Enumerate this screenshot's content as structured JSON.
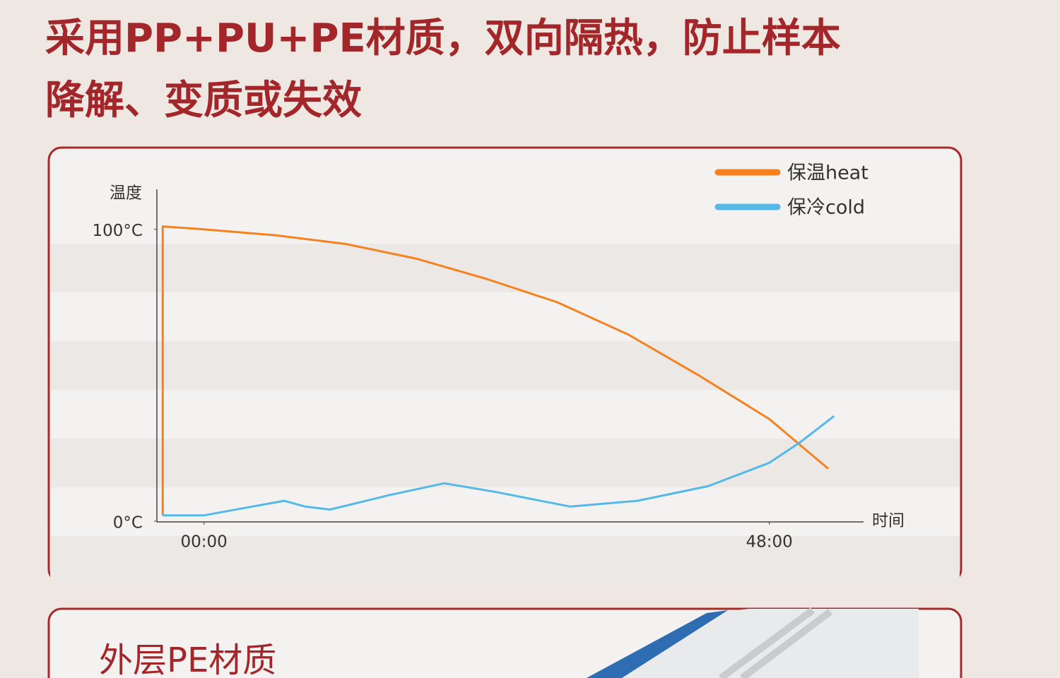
{
  "header": {
    "lines": [
      "采用PP+PU+PE材质，双向隔热，防止样本",
      "降解、变质或失效"
    ]
  },
  "chart_data": {
    "type": "line",
    "y_label": "温度",
    "x_label": "时间",
    "xlim": [
      -4,
      56
    ],
    "ylim": [
      0,
      113
    ],
    "xticks": [
      {
        "value": 0,
        "label": "00:00"
      },
      {
        "value": 48,
        "label": "48:00"
      }
    ],
    "yticks": [
      {
        "value": 0,
        "label": "0°C"
      },
      {
        "value": 100,
        "label": "100°C"
      }
    ],
    "legend": "top-right",
    "series": [
      {
        "name": "保温heat",
        "color": "#f5821f",
        "x": [
          -3.5,
          -3.5,
          0,
          6,
          12,
          18,
          24,
          30,
          36,
          42,
          48,
          53
        ],
        "values": [
          2,
          101,
          100,
          98,
          95,
          90,
          83,
          75,
          64,
          50,
          35,
          18
        ]
      },
      {
        "name": "保冷cold",
        "color": "#55b9e8",
        "x": [
          -3.5,
          0,
          6.8,
          8.6,
          10.7,
          15.8,
          20.4,
          24.8,
          31.1,
          36.8,
          42.8,
          48,
          50.6,
          53.5
        ],
        "values": [
          2,
          2,
          7,
          5,
          4,
          9,
          13,
          10,
          5,
          7,
          12,
          20,
          27,
          36
        ]
      }
    ]
  },
  "section": {
    "title": "外层PE材质"
  }
}
